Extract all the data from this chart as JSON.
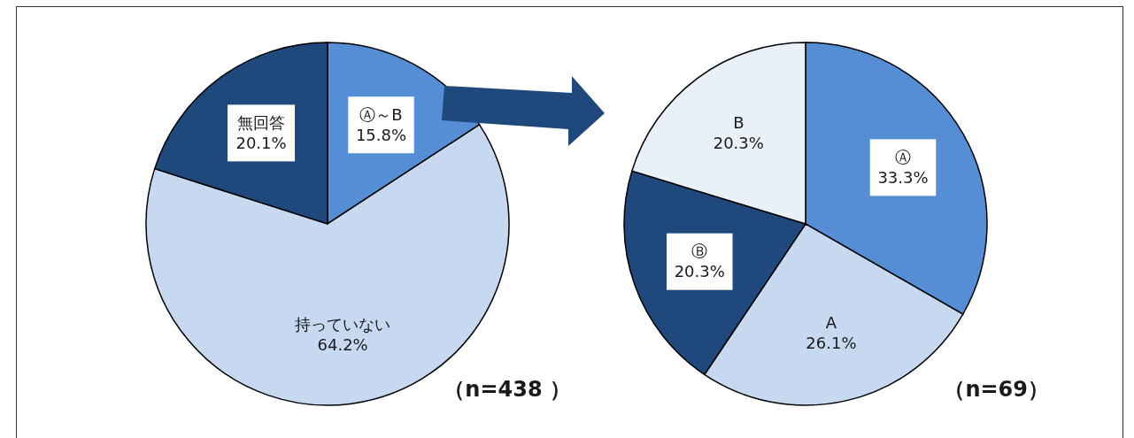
{
  "chart_data": [
    {
      "type": "pie",
      "categories": [
        "Ⓐ～B",
        "持っていない",
        "無回答"
      ],
      "values": [
        15.8,
        64.2,
        20.1
      ],
      "colors": [
        "#558ed5",
        "#c6d9f0",
        "#1f497d"
      ],
      "value_labels": [
        "15.8%",
        "64.2%",
        "20.1%"
      ],
      "annotations": [
        "（n=438 ）"
      ]
    },
    {
      "type": "pie",
      "categories": [
        "Ⓐ",
        "A",
        "Ⓑ",
        "B"
      ],
      "values": [
        33.3,
        26.1,
        20.3,
        20.3
      ],
      "colors": [
        "#558ed5",
        "#c6d9f0",
        "#1f497d",
        "#eaf0f8"
      ],
      "value_labels": [
        "33.3%",
        "26.1%",
        "20.3%",
        "20.3%"
      ],
      "annotations": [
        "（n=69）"
      ]
    }
  ]
}
